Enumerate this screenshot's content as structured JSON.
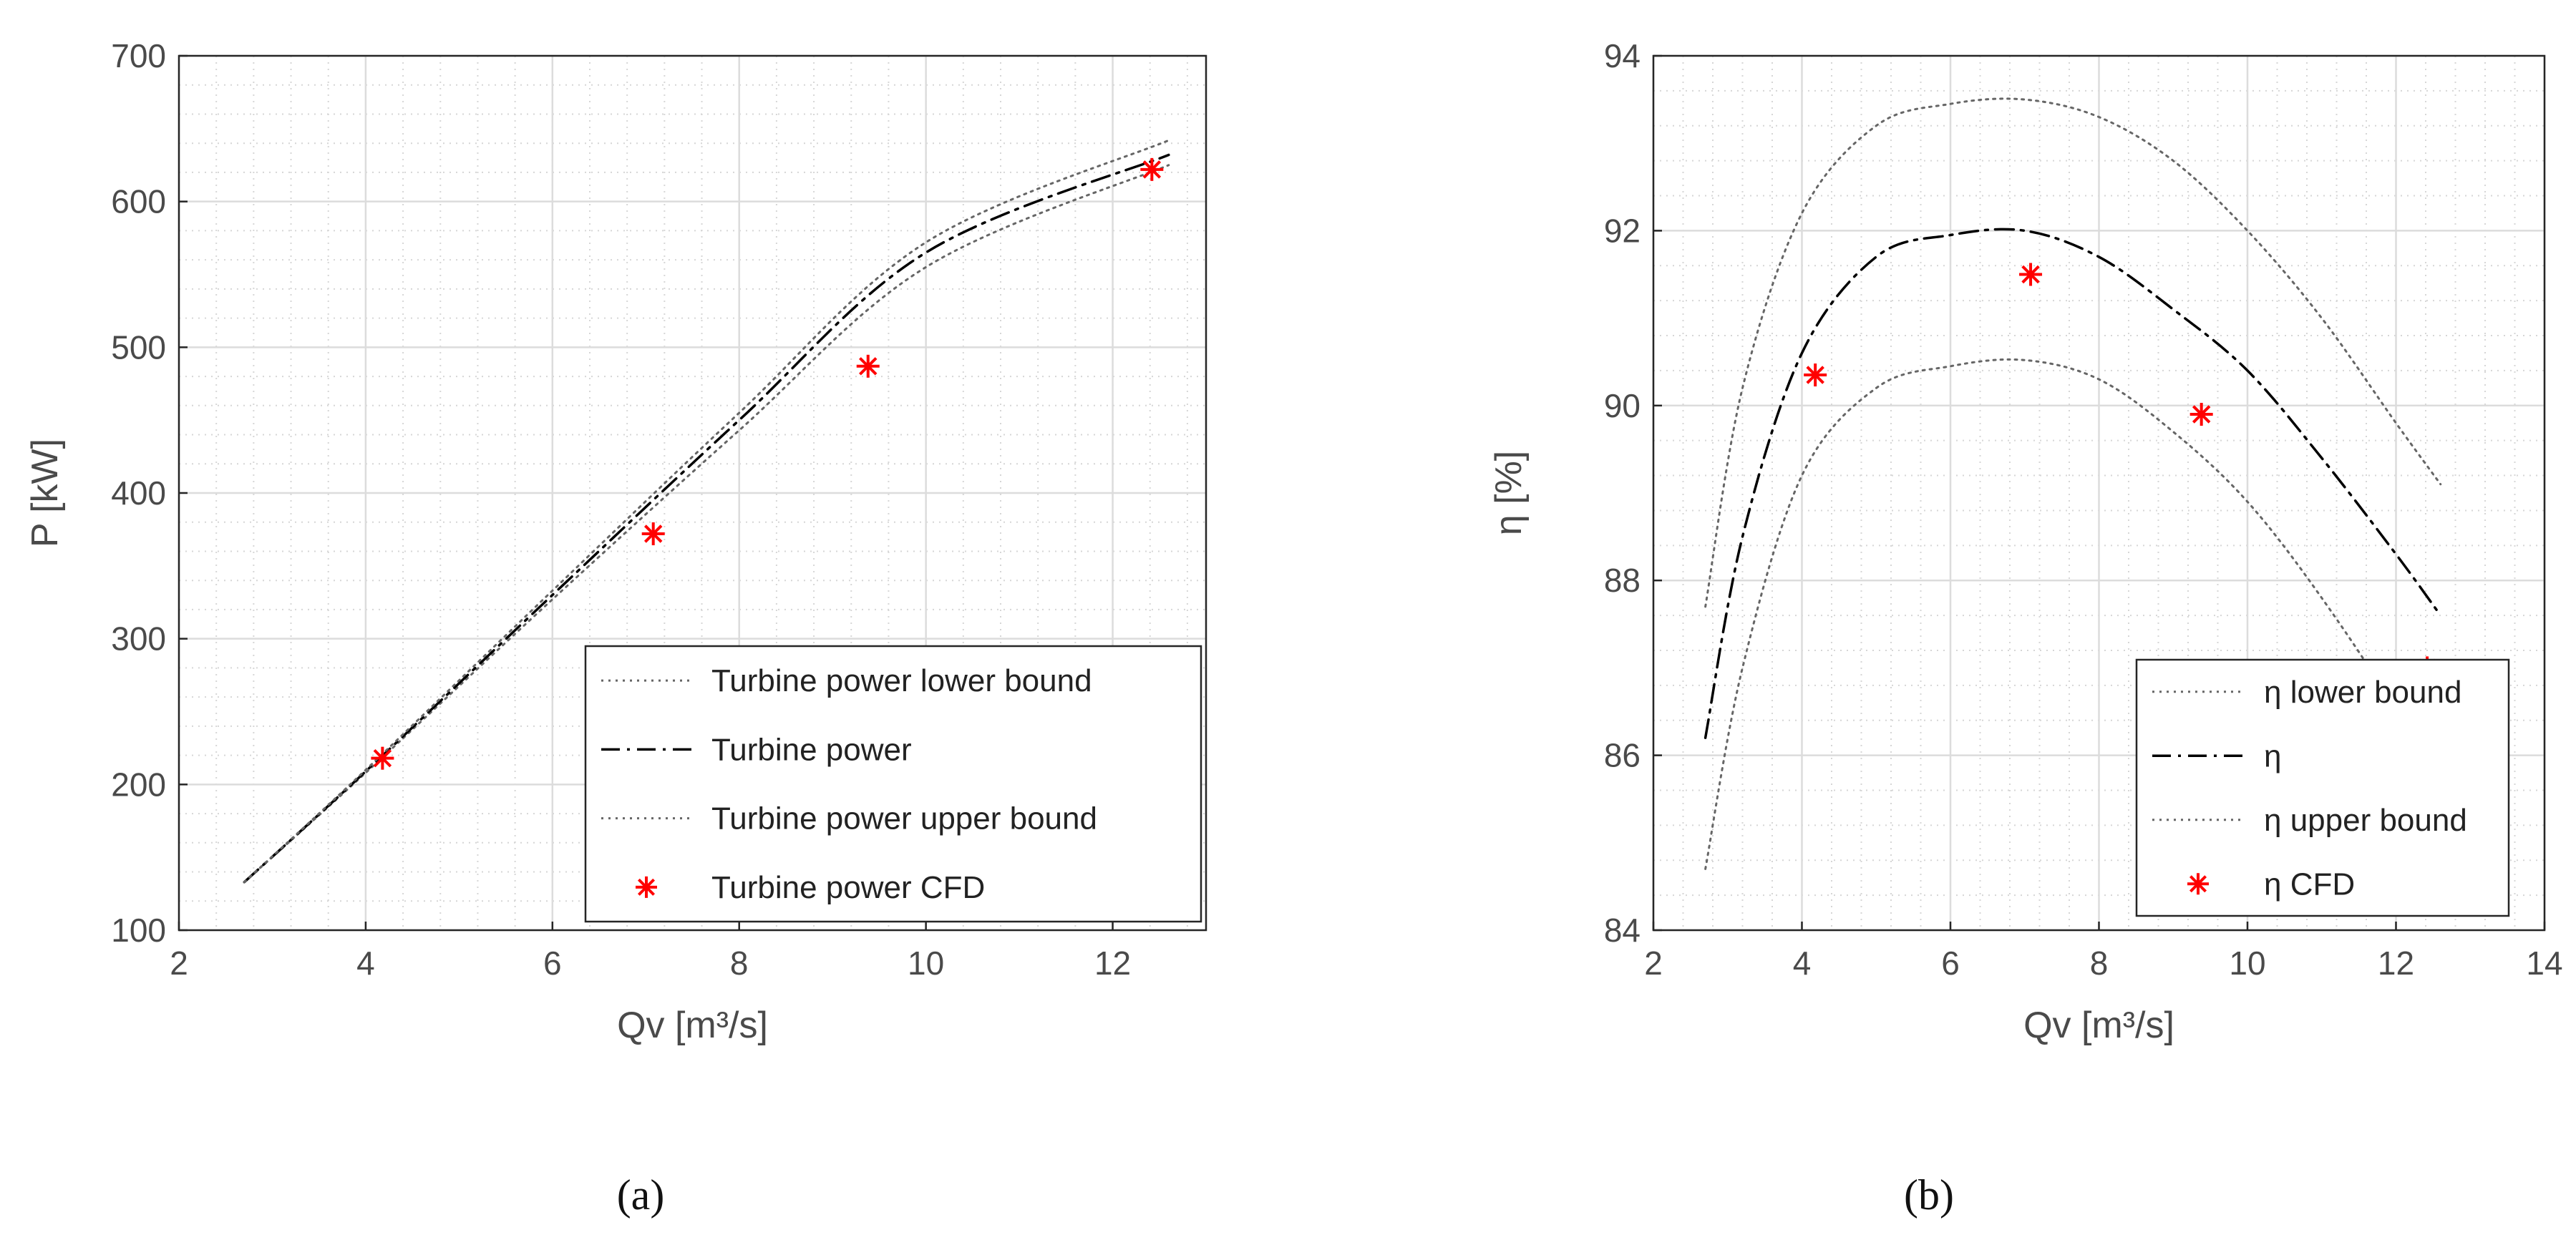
{
  "chart_data": [
    {
      "panel": "a",
      "type": "line",
      "caption": "(a)",
      "xlabel": "Qv [m³/s]",
      "ylabel": "P [kW]",
      "xlim": [
        2,
        13
      ],
      "ylim": [
        100,
        700
      ],
      "xticks": [
        2,
        4,
        6,
        8,
        10,
        12
      ],
      "yticks": [
        100,
        200,
        300,
        400,
        500,
        600,
        700
      ],
      "grid": true,
      "minor_grid": true,
      "legend_position": "bottom-right",
      "series": [
        {
          "name": "Turbine power lower bound",
          "style": "dotted",
          "color": "#666666",
          "x": [
            2.7,
            4,
            6,
            8,
            10,
            12.6
          ],
          "y": [
            133,
            208,
            327,
            443,
            555,
            625
          ]
        },
        {
          "name": "Turbine power",
          "style": "dashdot",
          "color": "#000000",
          "x": [
            2.7,
            4,
            6,
            8,
            10,
            12.6
          ],
          "y": [
            133,
            209,
            330,
            450,
            565,
            632
          ]
        },
        {
          "name": "Turbine power upper bound",
          "style": "dotted",
          "color": "#666666",
          "x": [
            2.7,
            4,
            6,
            8,
            10,
            12.6
          ],
          "y": [
            133,
            210,
            333,
            455,
            572,
            642
          ]
        },
        {
          "name": "Turbine power CFD",
          "style": "marker",
          "color": "#ff0000",
          "x": [
            4.18,
            7.08,
            9.38,
            12.42
          ],
          "y": [
            218,
            372,
            487,
            622
          ]
        }
      ]
    },
    {
      "panel": "b",
      "type": "line",
      "caption": "(b)",
      "xlabel": "Qv [m³/s]",
      "ylabel": "η [%]",
      "xlim": [
        2,
        14
      ],
      "ylim": [
        84,
        94
      ],
      "xticks": [
        2,
        4,
        6,
        8,
        10,
        12,
        14
      ],
      "yticks": [
        84,
        86,
        88,
        90,
        92,
        94
      ],
      "grid": true,
      "minor_grid": true,
      "legend_position": "bottom-right",
      "series": [
        {
          "name": "η lower bound",
          "style": "dotted",
          "color": "#666666",
          "x": [
            2.7,
            3.2,
            4,
            5,
            6,
            7,
            8,
            9,
            10,
            11,
            12,
            12.6
          ],
          "y": [
            84.7,
            87.0,
            89.2,
            90.2,
            90.45,
            90.52,
            90.3,
            89.7,
            88.9,
            87.8,
            86.5,
            85.4
          ]
        },
        {
          "name": "η",
          "style": "dashdot",
          "color": "#000000",
          "x": [
            2.7,
            3.2,
            4,
            5,
            6,
            7,
            8,
            9,
            10,
            11,
            12,
            12.6
          ],
          "y": [
            86.2,
            88.5,
            90.6,
            91.7,
            91.95,
            92.0,
            91.7,
            91.1,
            90.4,
            89.4,
            88.3,
            87.6
          ]
        },
        {
          "name": "η upper bound",
          "style": "dotted",
          "color": "#666666",
          "x": [
            2.7,
            3.2,
            4,
            5,
            6,
            7,
            8,
            9,
            10,
            11,
            12,
            12.6
          ],
          "y": [
            87.7,
            90.2,
            92.2,
            93.2,
            93.45,
            93.5,
            93.3,
            92.8,
            92.0,
            91.0,
            89.8,
            89.1
          ]
        },
        {
          "name": "η CFD",
          "style": "marker",
          "color": "#ff0000",
          "x": [
            4.18,
            7.08,
            9.38,
            12.42
          ],
          "y": [
            90.35,
            91.5,
            89.9,
            87.0
          ]
        }
      ]
    }
  ]
}
